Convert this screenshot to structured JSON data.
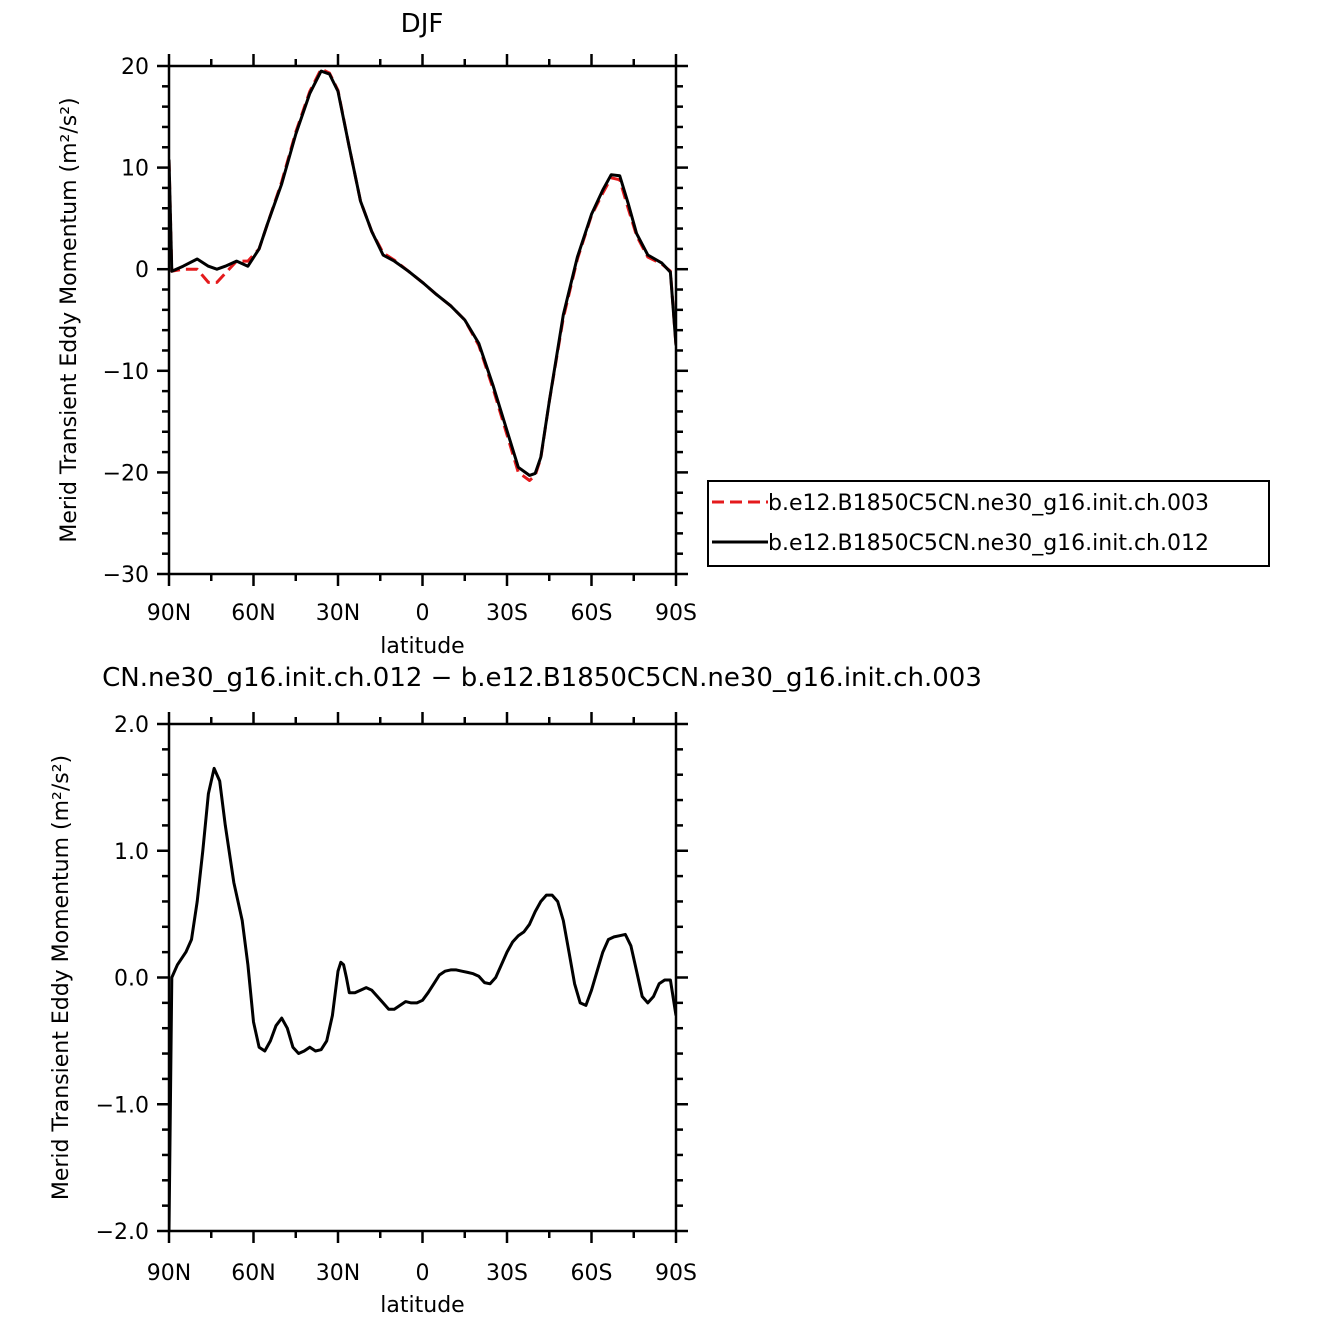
{
  "chart_data": [
    {
      "type": "line",
      "title": "DJF",
      "xlabel": "latitude",
      "ylabel": "Merid Transient Eddy Momentum (m²/s²)",
      "xlim": [
        90,
        -90
      ],
      "ylim": [
        -30,
        20
      ],
      "x_ticks": [
        90,
        60,
        30,
        0,
        -30,
        -60,
        -90
      ],
      "x_tick_labels": [
        "90N",
        "60N",
        "30N",
        "0",
        "30S",
        "60S",
        "90S"
      ],
      "y_ticks": [
        -30,
        -20,
        -10,
        0,
        10,
        20
      ],
      "y_tick_labels": [
        "−30",
        "−20",
        "−10",
        "0",
        "10",
        "20"
      ],
      "legend_position": "right",
      "series": [
        {
          "name": "b.e12.B1850C5CN.ne30_g16.init.ch.003",
          "color": "#e41a1c",
          "style": "dashed",
          "x": [
            90,
            89,
            85,
            80,
            76,
            73,
            70,
            66,
            62,
            58,
            55,
            50,
            45,
            40,
            36,
            33,
            30,
            26,
            22,
            18,
            14,
            10,
            5,
            0,
            -5,
            -10,
            -15,
            -20,
            -25,
            -30,
            -34,
            -38,
            -40,
            -42,
            -45,
            -50,
            -55,
            -60,
            -64,
            -67,
            -70,
            -73,
            -76,
            -80,
            -85,
            -88,
            -90
          ],
          "y": [
            10.8,
            -0.2,
            0.0,
            0.0,
            -1.3,
            -1.3,
            -0.4,
            0.8,
            0.8,
            2.0,
            4.5,
            8.6,
            13.5,
            17.5,
            19.7,
            19.3,
            17.6,
            12.0,
            6.7,
            3.7,
            1.6,
            0.9,
            -0.2,
            -1.3,
            -2.5,
            -3.6,
            -5.0,
            -7.5,
            -11.7,
            -16.3,
            -20.0,
            -20.8,
            -20.3,
            -18.6,
            -13.0,
            -4.8,
            1.0,
            5.3,
            7.5,
            9.0,
            8.8,
            6.0,
            3.3,
            1.2,
            0.5,
            -0.2,
            -7.5
          ]
        },
        {
          "name": "b.e12.B1850C5CN.ne30_g16.init.ch.012",
          "color": "#000000",
          "style": "solid",
          "x": [
            90,
            89,
            85,
            80,
            76,
            73,
            70,
            66,
            62,
            58,
            55,
            50,
            45,
            40,
            36,
            33,
            30,
            26,
            22,
            18,
            14,
            10,
            5,
            0,
            -5,
            -10,
            -15,
            -20,
            -25,
            -30,
            -34,
            -38,
            -40,
            -42,
            -45,
            -50,
            -55,
            -60,
            -64,
            -67,
            -70,
            -73,
            -76,
            -80,
            -85,
            -88,
            -90
          ],
          "y": [
            10.8,
            -0.2,
            0.3,
            1.0,
            0.3,
            0.0,
            0.3,
            0.8,
            0.3,
            2.0,
            4.5,
            8.4,
            13.3,
            17.3,
            19.5,
            19.2,
            17.5,
            12.0,
            6.7,
            3.7,
            1.4,
            0.8,
            -0.2,
            -1.3,
            -2.5,
            -3.6,
            -5.0,
            -7.3,
            -11.4,
            -15.9,
            -19.5,
            -20.3,
            -20.1,
            -18.5,
            -13.0,
            -4.5,
            1.2,
            5.4,
            7.8,
            9.3,
            9.2,
            6.5,
            3.5,
            1.4,
            0.6,
            -0.3,
            -7.5
          ]
        }
      ]
    },
    {
      "type": "line",
      "title": "CN.ne30_g16.init.ch.012 − b.e12.B1850C5CN.ne30_g16.init.ch.003",
      "xlabel": "latitude",
      "ylabel": "Merid Transient Eddy Momentum (m²/s²)",
      "xlim": [
        90,
        -90
      ],
      "ylim": [
        -2.0,
        2.0
      ],
      "x_ticks": [
        90,
        60,
        30,
        0,
        -30,
        -60,
        -90
      ],
      "x_tick_labels": [
        "90N",
        "60N",
        "30N",
        "0",
        "30S",
        "60S",
        "90S"
      ],
      "y_ticks": [
        -2.0,
        -1.0,
        0.0,
        1.0,
        2.0
      ],
      "y_tick_labels": [
        "−2.0",
        "−1.0",
        "0.0",
        "1.0",
        "2.0"
      ],
      "series": [
        {
          "color": "#000000",
          "style": "solid",
          "x": [
            90,
            89,
            87,
            84,
            82,
            80,
            78,
            76,
            74,
            72,
            70,
            67,
            64,
            62,
            60,
            58,
            56,
            54,
            52,
            50,
            48,
            46,
            44,
            42,
            40,
            38,
            36,
            34,
            32,
            30,
            29,
            28,
            27,
            26,
            24,
            22,
            20,
            18,
            16,
            14,
            12,
            10,
            8,
            6,
            4,
            2,
            0,
            -2,
            -4,
            -6,
            -8,
            -10,
            -12,
            -14,
            -16,
            -18,
            -20,
            -22,
            -24,
            -26,
            -28,
            -30,
            -32,
            -34,
            -36,
            -38,
            -40,
            -42,
            -44,
            -46,
            -48,
            -50,
            -52,
            -54,
            -56,
            -58,
            -60,
            -62,
            -64,
            -66,
            -68,
            -70,
            -72,
            -74,
            -76,
            -78,
            -80,
            -82,
            -84,
            -86,
            -88,
            -90
          ],
          "y": [
            -2.0,
            0.0,
            0.1,
            0.2,
            0.3,
            0.6,
            1.0,
            1.45,
            1.65,
            1.55,
            1.2,
            0.75,
            0.45,
            0.1,
            -0.35,
            -0.55,
            -0.58,
            -0.5,
            -0.38,
            -0.32,
            -0.4,
            -0.55,
            -0.6,
            -0.58,
            -0.55,
            -0.58,
            -0.57,
            -0.5,
            -0.3,
            0.05,
            0.12,
            0.1,
            0.0,
            -0.12,
            -0.12,
            -0.1,
            -0.08,
            -0.1,
            -0.15,
            -0.2,
            -0.25,
            -0.25,
            -0.22,
            -0.19,
            -0.2,
            -0.2,
            -0.18,
            -0.12,
            -0.05,
            0.02,
            0.05,
            0.06,
            0.06,
            0.05,
            0.04,
            0.03,
            0.01,
            -0.04,
            -0.05,
            0.0,
            0.1,
            0.2,
            0.28,
            0.33,
            0.36,
            0.42,
            0.52,
            0.6,
            0.65,
            0.65,
            0.6,
            0.45,
            0.2,
            -0.05,
            -0.2,
            -0.22,
            -0.1,
            0.05,
            0.2,
            0.3,
            0.32,
            0.33,
            0.34,
            0.25,
            0.05,
            -0.15,
            -0.2,
            -0.15,
            -0.05,
            -0.02,
            -0.02,
            -0.3
          ]
        }
      ]
    }
  ]
}
